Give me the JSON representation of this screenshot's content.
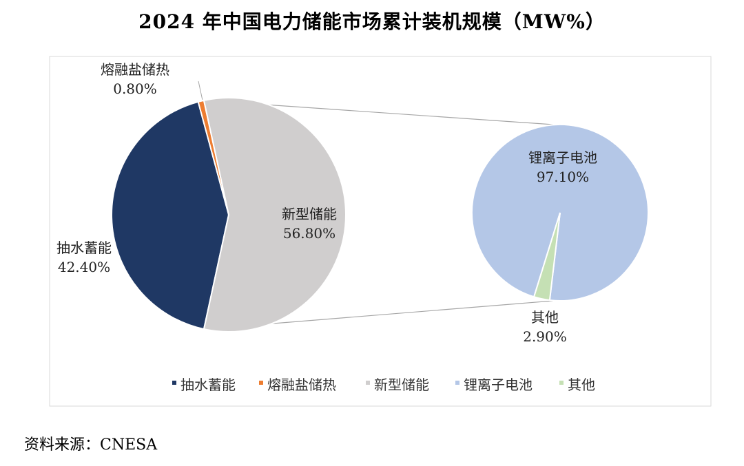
{
  "title": "2024 年中国电力储能市场累计装机规模（MW%）",
  "source": "资料来源：CNESA",
  "chart_data": {
    "type": "pie",
    "title": "2024 年中国电力储能市场累计装机规模（MW%）",
    "main_pie": {
      "slices": [
        {
          "name": "抽水蓄能",
          "value": 42.4,
          "label": "42.40%",
          "color": "#1f3864"
        },
        {
          "name": "熔融盐储热",
          "value": 0.8,
          "label": "0.80%",
          "color": "#ed7d31"
        },
        {
          "name": "新型储能",
          "value": 56.8,
          "label": "56.80%",
          "color": "#d0cece"
        }
      ]
    },
    "secondary_pie": {
      "of": "新型储能",
      "slices": [
        {
          "name": "锂离子电池",
          "value": 97.1,
          "label": "97.10%",
          "color": "#b4c7e7"
        },
        {
          "name": "其他",
          "value": 2.9,
          "label": "2.90%",
          "color": "#c5e0b4"
        }
      ]
    },
    "legend": {
      "placement": "bottom",
      "items": [
        {
          "name": "抽水蓄能",
          "color": "#1f3864"
        },
        {
          "name": "熔融盐储热",
          "color": "#ed7d31"
        },
        {
          "name": "新型储能",
          "color": "#d0cece"
        },
        {
          "name": "锂离子电池",
          "color": "#b4c7e7"
        },
        {
          "name": "其他",
          "color": "#c5e0b4"
        }
      ]
    }
  }
}
